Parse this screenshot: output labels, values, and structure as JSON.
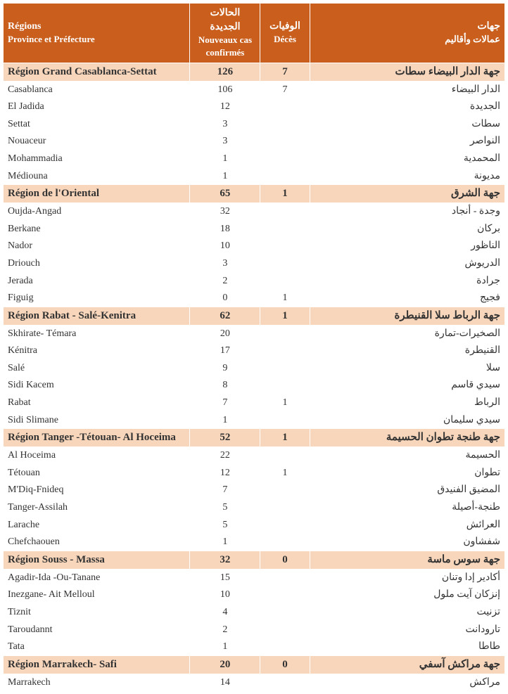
{
  "colors": {
    "header_bg": "#c95e1d",
    "header_fg": "#ffffff",
    "region_bg": "#f7d6bb",
    "border": "#ffffff",
    "text": "#333333"
  },
  "header": {
    "fr_region_top": "Régions",
    "fr_region_sub": "Province et Préfecture",
    "fr_cases_top": "الحالات الجديدة",
    "fr_cases_sub": "Nouveaux cas confirmés",
    "fr_deaths_top": "الوفيات",
    "fr_deaths_sub": "Décès",
    "ar_region_top": "جهات",
    "ar_region_sub": "عمالات وأقاليم"
  },
  "regions": [
    {
      "fr": "Région Grand Casablanca-Settat",
      "cases": "126",
      "deaths": "7",
      "ar": "جهة الدار البيضاء سطات",
      "rows": [
        {
          "fr": "Casablanca",
          "cases": "106",
          "deaths": "7",
          "ar": "الدار البيضاء"
        },
        {
          "fr": "El Jadida",
          "cases": "12",
          "deaths": "",
          "ar": "الجديدة"
        },
        {
          "fr": "Settat",
          "cases": "3",
          "deaths": "",
          "ar": "سطات"
        },
        {
          "fr": "Nouaceur",
          "cases": "3",
          "deaths": "",
          "ar": "النواصر"
        },
        {
          "fr": "Mohammadia",
          "cases": "1",
          "deaths": "",
          "ar": "المحمدية"
        },
        {
          "fr": "Médiouna",
          "cases": "1",
          "deaths": "",
          "ar": "مديونة"
        }
      ]
    },
    {
      "fr": "Région de l'Oriental",
      "cases": "65",
      "deaths": "1",
      "ar": "جهة الشرق",
      "rows": [
        {
          "fr": "Oujda-Angad",
          "cases": "32",
          "deaths": "",
          "ar": "وجدة - أنجاد"
        },
        {
          "fr": "Berkane",
          "cases": "18",
          "deaths": "",
          "ar": "بركان"
        },
        {
          "fr": "Nador",
          "cases": "10",
          "deaths": "",
          "ar": "الناظور"
        },
        {
          "fr": "Driouch",
          "cases": "3",
          "deaths": "",
          "ar": "الدريوش"
        },
        {
          "fr": "Jerada",
          "cases": "2",
          "deaths": "",
          "ar": "جرادة"
        },
        {
          "fr": "Figuig",
          "cases": "0",
          "deaths": "1",
          "ar": "فجيج"
        }
      ]
    },
    {
      "fr": "Région Rabat - Salé-Kenitra",
      "cases": "62",
      "deaths": "1",
      "ar": "جهة الرباط سلا القنيطرة",
      "rows": [
        {
          "fr": "Skhirate- Témara",
          "cases": "20",
          "deaths": "",
          "ar": "الصخيرات-تمارة"
        },
        {
          "fr": "Kénitra",
          "cases": "17",
          "deaths": "",
          "ar": "القنيطرة"
        },
        {
          "fr": "Salé",
          "cases": "9",
          "deaths": "",
          "ar": "سلا"
        },
        {
          "fr": "Sidi Kacem",
          "cases": "8",
          "deaths": "",
          "ar": "سيدي قاسم"
        },
        {
          "fr": "Rabat",
          "cases": "7",
          "deaths": "1",
          "ar": "الرباط"
        },
        {
          "fr": "Sidi Slimane",
          "cases": "1",
          "deaths": "",
          "ar": "سيدي سليمان"
        }
      ]
    },
    {
      "fr": "Région Tanger -Tétouan- Al Hoceima",
      "cases": "52",
      "deaths": "1",
      "ar": "جهة طنجة تطوان الحسيمة",
      "rows": [
        {
          "fr": "Al Hoceima",
          "cases": "22",
          "deaths": "",
          "ar": "الحسيمة"
        },
        {
          "fr": "Tétouan",
          "cases": "12",
          "deaths": "1",
          "ar": "تطوان"
        },
        {
          "fr": "M'Diq-Fnideq",
          "cases": "7",
          "deaths": "",
          "ar": "المضيق الفنيدق"
        },
        {
          "fr": "Tanger-Assilah",
          "cases": "5",
          "deaths": "",
          "ar": "طنجة-أصيلة"
        },
        {
          "fr": "Larache",
          "cases": "5",
          "deaths": "",
          "ar": "العرائش"
        },
        {
          "fr": "Chefchaouen",
          "cases": "1",
          "deaths": "",
          "ar": "شفشاون"
        }
      ]
    },
    {
      "fr": "Région Souss - Massa",
      "cases": "32",
      "deaths": "0",
      "ar": "جهة سوس ماسة",
      "rows": [
        {
          "fr": "Agadir-Ida -Ou-Tanane",
          "cases": "15",
          "deaths": "",
          "ar": "أكادير إدا وتنان"
        },
        {
          "fr": "Inezgane- Ait Melloul",
          "cases": "10",
          "deaths": "",
          "ar": "إنزكان آيت ملول"
        },
        {
          "fr": "Tiznit",
          "cases": "4",
          "deaths": "",
          "ar": "تزنيت"
        },
        {
          "fr": "Taroudannt",
          "cases": "2",
          "deaths": "",
          "ar": "تارودانت"
        },
        {
          "fr": "Tata",
          "cases": "1",
          "deaths": "",
          "ar": "طاطا"
        }
      ]
    },
    {
      "fr": "Région Marrakech- Safi",
      "cases": "20",
      "deaths": "0",
      "ar": "جهة مراكش آسفي",
      "rows": [
        {
          "fr": "Marrakech",
          "cases": "14",
          "deaths": "",
          "ar": "مراكش"
        }
      ]
    }
  ]
}
